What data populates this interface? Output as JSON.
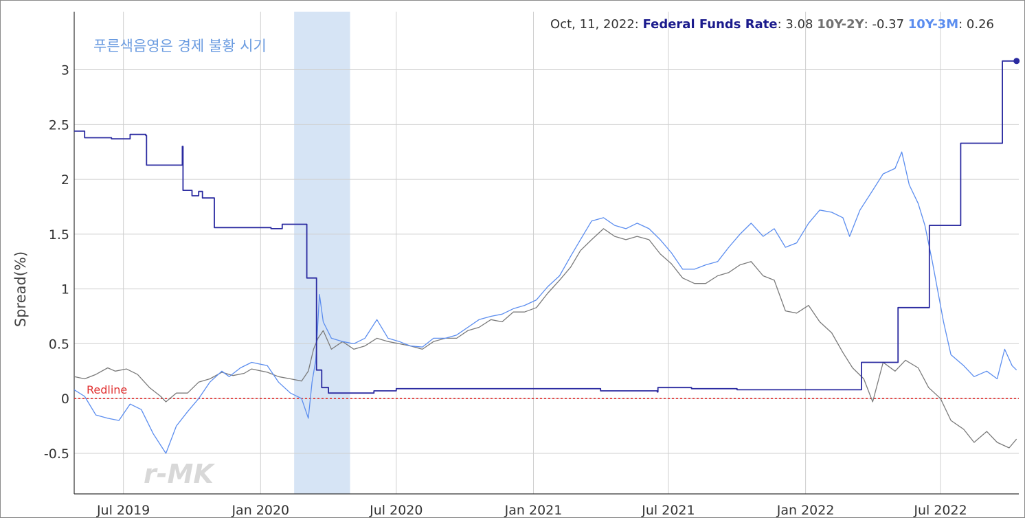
{
  "chart_data": {
    "type": "line",
    "ylabel": "Spread(%)",
    "annotation": "푸른색음영은 경제 불황 시기",
    "watermark": "r-MK",
    "redline_label": "Redline",
    "ylim": [
      -0.87,
      3.53
    ],
    "xlim": [
      "2019-04-26",
      "2022-10-14"
    ],
    "grid": true,
    "y_ticks": [
      {
        "value": 3,
        "label": "3"
      },
      {
        "value": 2.5,
        "label": "2.5"
      },
      {
        "value": 2,
        "label": "2"
      },
      {
        "value": 1.5,
        "label": "1.5"
      },
      {
        "value": 1,
        "label": "1"
      },
      {
        "value": 0.5,
        "label": "0.5"
      },
      {
        "value": 0,
        "label": "0"
      },
      {
        "value": -0.5,
        "label": "-0.5"
      }
    ],
    "x_ticks": [
      {
        "date": "2019-07-01",
        "label": "Jul 2019"
      },
      {
        "date": "2020-01-01",
        "label": "Jan 2020"
      },
      {
        "date": "2020-07-01",
        "label": "Jul 2020"
      },
      {
        "date": "2021-01-01",
        "label": "Jan 2021"
      },
      {
        "date": "2021-07-01",
        "label": "Jul 2021"
      },
      {
        "date": "2022-01-01",
        "label": "Jan 2022"
      },
      {
        "date": "2022-07-01",
        "label": "Jul 2022"
      }
    ],
    "recession": {
      "start": "2020-02-15",
      "end": "2020-04-30",
      "color": "#d6e4f5"
    },
    "redline": {
      "value": 0,
      "color": "#e03030"
    },
    "status": {
      "date": "Oct, 11, 2022",
      "entries": [
        {
          "name": "Federal Funds Rate",
          "value": "3.08",
          "color": "#1a1a8c"
        },
        {
          "name": "10Y-2Y",
          "value": "-0.37",
          "color": "#707070"
        },
        {
          "name": "10Y-3M",
          "value": "0.26",
          "color": "#5b8def"
        }
      ]
    },
    "series": [
      {
        "name": "Federal Funds Rate",
        "color": "#2a2aa0",
        "step": true,
        "points": [
          [
            "2019-04-26",
            2.44
          ],
          [
            "2019-05-10",
            2.38
          ],
          [
            "2019-06-15",
            2.37
          ],
          [
            "2019-07-10",
            2.41
          ],
          [
            "2019-07-31",
            2.4
          ],
          [
            "2019-08-01",
            2.13
          ],
          [
            "2019-09-10",
            2.13
          ],
          [
            "2019-09-18",
            2.3
          ],
          [
            "2019-09-19",
            1.9
          ],
          [
            "2019-10-01",
            1.85
          ],
          [
            "2019-10-10",
            1.89
          ],
          [
            "2019-10-15",
            1.83
          ],
          [
            "2019-10-30",
            1.83
          ],
          [
            "2019-10-31",
            1.56
          ],
          [
            "2020-01-15",
            1.55
          ],
          [
            "2020-01-30",
            1.59
          ],
          [
            "2020-03-02",
            1.59
          ],
          [
            "2020-03-03",
            1.1
          ],
          [
            "2020-03-15",
            1.1
          ],
          [
            "2020-03-16",
            0.26
          ],
          [
            "2020-03-23",
            0.1
          ],
          [
            "2020-04-01",
            0.05
          ],
          [
            "2020-05-01",
            0.05
          ],
          [
            "2020-06-01",
            0.07
          ],
          [
            "2020-07-01",
            0.09
          ],
          [
            "2020-10-01",
            0.09
          ],
          [
            "2021-01-01",
            0.09
          ],
          [
            "2021-04-01",
            0.07
          ],
          [
            "2021-06-16",
            0.06
          ],
          [
            "2021-06-17",
            0.1
          ],
          [
            "2021-08-01",
            0.09
          ],
          [
            "2021-10-01",
            0.08
          ],
          [
            "2022-03-16",
            0.08
          ],
          [
            "2022-03-17",
            0.33
          ],
          [
            "2022-05-04",
            0.33
          ],
          [
            "2022-05-05",
            0.83
          ],
          [
            "2022-06-15",
            0.83
          ],
          [
            "2022-06-16",
            1.58
          ],
          [
            "2022-07-27",
            1.58
          ],
          [
            "2022-07-28",
            2.33
          ],
          [
            "2022-09-21",
            2.33
          ],
          [
            "2022-09-22",
            3.08
          ],
          [
            "2022-10-11",
            3.08
          ]
        ]
      },
      {
        "name": "10Y-2Y",
        "color": "#7a7a7a",
        "step": false,
        "points": [
          [
            "2019-04-26",
            0.2
          ],
          [
            "2019-05-10",
            0.18
          ],
          [
            "2019-05-25",
            0.22
          ],
          [
            "2019-06-10",
            0.28
          ],
          [
            "2019-06-20",
            0.25
          ],
          [
            "2019-07-05",
            0.27
          ],
          [
            "2019-07-20",
            0.22
          ],
          [
            "2019-08-05",
            0.1
          ],
          [
            "2019-08-20",
            0.02
          ],
          [
            "2019-08-27",
            -0.03
          ],
          [
            "2019-09-10",
            0.05
          ],
          [
            "2019-09-25",
            0.05
          ],
          [
            "2019-10-10",
            0.15
          ],
          [
            "2019-10-25",
            0.18
          ],
          [
            "2019-11-10",
            0.24
          ],
          [
            "2019-11-25",
            0.21
          ],
          [
            "2019-12-10",
            0.23
          ],
          [
            "2019-12-20",
            0.27
          ],
          [
            "2020-01-10",
            0.24
          ],
          [
            "2020-01-25",
            0.2
          ],
          [
            "2020-02-10",
            0.18
          ],
          [
            "2020-02-25",
            0.16
          ],
          [
            "2020-03-05",
            0.25
          ],
          [
            "2020-03-12",
            0.45
          ],
          [
            "2020-03-18",
            0.55
          ],
          [
            "2020-03-25",
            0.62
          ],
          [
            "2020-04-05",
            0.45
          ],
          [
            "2020-04-20",
            0.52
          ],
          [
            "2020-05-05",
            0.45
          ],
          [
            "2020-05-20",
            0.48
          ],
          [
            "2020-06-05",
            0.55
          ],
          [
            "2020-06-20",
            0.52
          ],
          [
            "2020-07-05",
            0.5
          ],
          [
            "2020-07-20",
            0.48
          ],
          [
            "2020-08-05",
            0.45
          ],
          [
            "2020-08-20",
            0.52
          ],
          [
            "2020-09-05",
            0.55
          ],
          [
            "2020-09-20",
            0.55
          ],
          [
            "2020-10-05",
            0.62
          ],
          [
            "2020-10-20",
            0.65
          ],
          [
            "2020-11-05",
            0.72
          ],
          [
            "2020-11-20",
            0.7
          ],
          [
            "2020-12-05",
            0.79
          ],
          [
            "2020-12-20",
            0.79
          ],
          [
            "2021-01-05",
            0.83
          ],
          [
            "2021-01-20",
            0.96
          ],
          [
            "2021-02-05",
            1.08
          ],
          [
            "2021-02-20",
            1.2
          ],
          [
            "2021-03-05",
            1.35
          ],
          [
            "2021-03-20",
            1.45
          ],
          [
            "2021-04-05",
            1.55
          ],
          [
            "2021-04-20",
            1.48
          ],
          [
            "2021-05-05",
            1.45
          ],
          [
            "2021-05-20",
            1.48
          ],
          [
            "2021-06-05",
            1.45
          ],
          [
            "2021-06-20",
            1.32
          ],
          [
            "2021-07-05",
            1.23
          ],
          [
            "2021-07-20",
            1.1
          ],
          [
            "2021-08-05",
            1.05
          ],
          [
            "2021-08-20",
            1.05
          ],
          [
            "2021-09-05",
            1.12
          ],
          [
            "2021-09-20",
            1.15
          ],
          [
            "2021-10-05",
            1.22
          ],
          [
            "2021-10-20",
            1.25
          ],
          [
            "2021-11-05",
            1.12
          ],
          [
            "2021-11-20",
            1.08
          ],
          [
            "2021-12-05",
            0.8
          ],
          [
            "2021-12-20",
            0.78
          ],
          [
            "2022-01-05",
            0.85
          ],
          [
            "2022-01-20",
            0.7
          ],
          [
            "2022-02-05",
            0.6
          ],
          [
            "2022-02-20",
            0.42
          ],
          [
            "2022-03-05",
            0.28
          ],
          [
            "2022-03-20",
            0.18
          ],
          [
            "2022-04-01",
            -0.03
          ],
          [
            "2022-04-15",
            0.33
          ],
          [
            "2022-05-01",
            0.25
          ],
          [
            "2022-05-15",
            0.35
          ],
          [
            "2022-06-01",
            0.28
          ],
          [
            "2022-06-15",
            0.1
          ],
          [
            "2022-07-01",
            0.0
          ],
          [
            "2022-07-15",
            -0.2
          ],
          [
            "2022-08-01",
            -0.28
          ],
          [
            "2022-08-15",
            -0.4
          ],
          [
            "2022-09-01",
            -0.3
          ],
          [
            "2022-09-15",
            -0.4
          ],
          [
            "2022-10-01",
            -0.45
          ],
          [
            "2022-10-11",
            -0.37
          ]
        ]
      },
      {
        "name": "10Y-3M",
        "color": "#5b8def",
        "step": false,
        "points": [
          [
            "2019-04-26",
            0.08
          ],
          [
            "2019-05-10",
            0.02
          ],
          [
            "2019-05-25",
            -0.15
          ],
          [
            "2019-06-10",
            -0.18
          ],
          [
            "2019-06-25",
            -0.2
          ],
          [
            "2019-07-10",
            -0.05
          ],
          [
            "2019-07-25",
            -0.1
          ],
          [
            "2019-08-10",
            -0.32
          ],
          [
            "2019-08-27",
            -0.5
          ],
          [
            "2019-09-10",
            -0.25
          ],
          [
            "2019-09-25",
            -0.12
          ],
          [
            "2019-10-10",
            0.0
          ],
          [
            "2019-10-25",
            0.15
          ],
          [
            "2019-11-10",
            0.25
          ],
          [
            "2019-11-20",
            0.2
          ],
          [
            "2019-12-05",
            0.28
          ],
          [
            "2019-12-20",
            0.33
          ],
          [
            "2020-01-10",
            0.3
          ],
          [
            "2020-01-25",
            0.15
          ],
          [
            "2020-02-10",
            0.05
          ],
          [
            "2020-02-25",
            0.0
          ],
          [
            "2020-03-05",
            -0.18
          ],
          [
            "2020-03-10",
            0.15
          ],
          [
            "2020-03-15",
            0.35
          ],
          [
            "2020-03-20",
            0.95
          ],
          [
            "2020-03-25",
            0.7
          ],
          [
            "2020-04-05",
            0.55
          ],
          [
            "2020-04-20",
            0.52
          ],
          [
            "2020-05-05",
            0.5
          ],
          [
            "2020-05-20",
            0.55
          ],
          [
            "2020-06-05",
            0.72
          ],
          [
            "2020-06-20",
            0.55
          ],
          [
            "2020-07-05",
            0.52
          ],
          [
            "2020-07-20",
            0.48
          ],
          [
            "2020-08-05",
            0.47
          ],
          [
            "2020-08-20",
            0.55
          ],
          [
            "2020-09-05",
            0.55
          ],
          [
            "2020-09-20",
            0.58
          ],
          [
            "2020-10-05",
            0.65
          ],
          [
            "2020-10-20",
            0.72
          ],
          [
            "2020-11-05",
            0.75
          ],
          [
            "2020-11-20",
            0.77
          ],
          [
            "2020-12-05",
            0.82
          ],
          [
            "2020-12-20",
            0.85
          ],
          [
            "2021-01-05",
            0.9
          ],
          [
            "2021-01-20",
            1.02
          ],
          [
            "2021-02-05",
            1.12
          ],
          [
            "2021-02-20",
            1.3
          ],
          [
            "2021-03-05",
            1.45
          ],
          [
            "2021-03-20",
            1.62
          ],
          [
            "2021-04-05",
            1.65
          ],
          [
            "2021-04-20",
            1.58
          ],
          [
            "2021-05-05",
            1.55
          ],
          [
            "2021-05-20",
            1.6
          ],
          [
            "2021-06-05",
            1.55
          ],
          [
            "2021-06-20",
            1.45
          ],
          [
            "2021-07-05",
            1.33
          ],
          [
            "2021-07-20",
            1.18
          ],
          [
            "2021-08-05",
            1.18
          ],
          [
            "2021-08-20",
            1.22
          ],
          [
            "2021-09-05",
            1.25
          ],
          [
            "2021-09-20",
            1.38
          ],
          [
            "2021-10-05",
            1.5
          ],
          [
            "2021-10-20",
            1.6
          ],
          [
            "2021-11-05",
            1.48
          ],
          [
            "2021-11-20",
            1.55
          ],
          [
            "2021-12-05",
            1.38
          ],
          [
            "2021-12-20",
            1.42
          ],
          [
            "2022-01-05",
            1.6
          ],
          [
            "2022-01-20",
            1.72
          ],
          [
            "2022-02-05",
            1.7
          ],
          [
            "2022-02-20",
            1.65
          ],
          [
            "2022-03-01",
            1.48
          ],
          [
            "2022-03-15",
            1.72
          ],
          [
            "2022-04-01",
            1.9
          ],
          [
            "2022-04-15",
            2.05
          ],
          [
            "2022-05-01",
            2.1
          ],
          [
            "2022-05-10",
            2.25
          ],
          [
            "2022-05-20",
            1.95
          ],
          [
            "2022-06-01",
            1.78
          ],
          [
            "2022-06-10",
            1.58
          ],
          [
            "2022-06-20",
            1.25
          ],
          [
            "2022-07-05",
            0.7
          ],
          [
            "2022-07-15",
            0.4
          ],
          [
            "2022-08-01",
            0.3
          ],
          [
            "2022-08-15",
            0.2
          ],
          [
            "2022-09-01",
            0.25
          ],
          [
            "2022-09-15",
            0.18
          ],
          [
            "2022-09-25",
            0.45
          ],
          [
            "2022-10-05",
            0.3
          ],
          [
            "2022-10-11",
            0.26
          ]
        ]
      }
    ]
  }
}
